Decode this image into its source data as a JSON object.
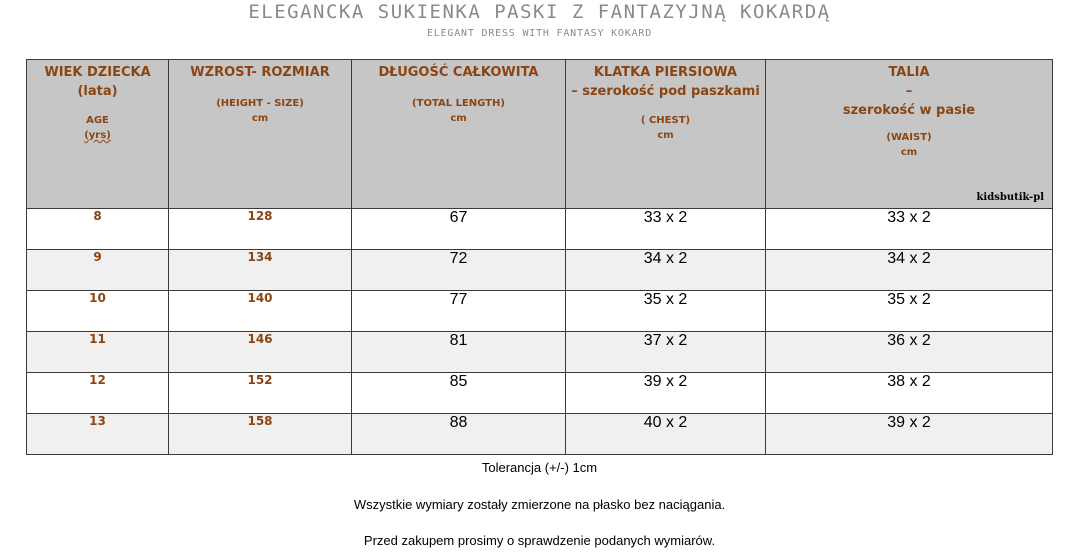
{
  "title": "ELEGANCKA SUKIENKA PASKI Z FANTAZYJNĄ KOKARDĄ",
  "subtitle": "ELEGANT DRESS WITH FANTASY KOKARD",
  "header": {
    "age": {
      "line1": "WIEK DZIECKA",
      "line2": "(lata)",
      "en": "AGE",
      "en2": "(yrs)"
    },
    "height": {
      "line1": "WZROST- ROZMIAR",
      "en": "(HEIGHT - SIZE)",
      "unit": "cm"
    },
    "length": {
      "line1": "DŁUGOŚĆ CAŁKOWITA",
      "en": "(TOTAL LENGTH)",
      "unit": "cm"
    },
    "chest": {
      "line1": "KLATKA PIERSIOWA",
      "line2": "– szerokość pod paszkami",
      "en": "( CHEST)",
      "unit": "cm"
    },
    "waist": {
      "line1": "TALIA",
      "line2": "–",
      "line3": "szerokość w pasie",
      "en": "(WAIST)",
      "unit": "cm"
    },
    "shop": "kidsbutik-pl"
  },
  "rows": [
    {
      "age": "8",
      "height": "128",
      "length": "67",
      "chest": "33 x 2",
      "waist": "33 x 2"
    },
    {
      "age": "9",
      "height": "134",
      "length": "72",
      "chest": "34 x 2",
      "waist": "34 x 2"
    },
    {
      "age": "10",
      "height": "140",
      "length": "77",
      "chest": "35 x 2",
      "waist": "35 x 2"
    },
    {
      "age": "11",
      "height": "146",
      "length": "81",
      "chest": "37 x 2",
      "waist": "36 x 2"
    },
    {
      "age": "12",
      "height": "152",
      "length": "85",
      "chest": "39 x 2",
      "waist": "38 x 2"
    },
    {
      "age": "13",
      "height": "158",
      "length": "88",
      "chest": "40 x 2",
      "waist": "39 x 2"
    }
  ],
  "notes": {
    "tolerance": "Tolerancja (+/-) 1cm",
    "flat": "Wszystkie wymiary zostały zmierzone na płasko bez naciągania.",
    "check": "Przed zakupem prosimy o sprawdzenie podanych wymiarów."
  },
  "colors": {
    "header_bg": "#c6c6c6",
    "header_text": "#8b4513",
    "title_text": "#8a8a8a",
    "stripe": "#f0f0f0"
  }
}
